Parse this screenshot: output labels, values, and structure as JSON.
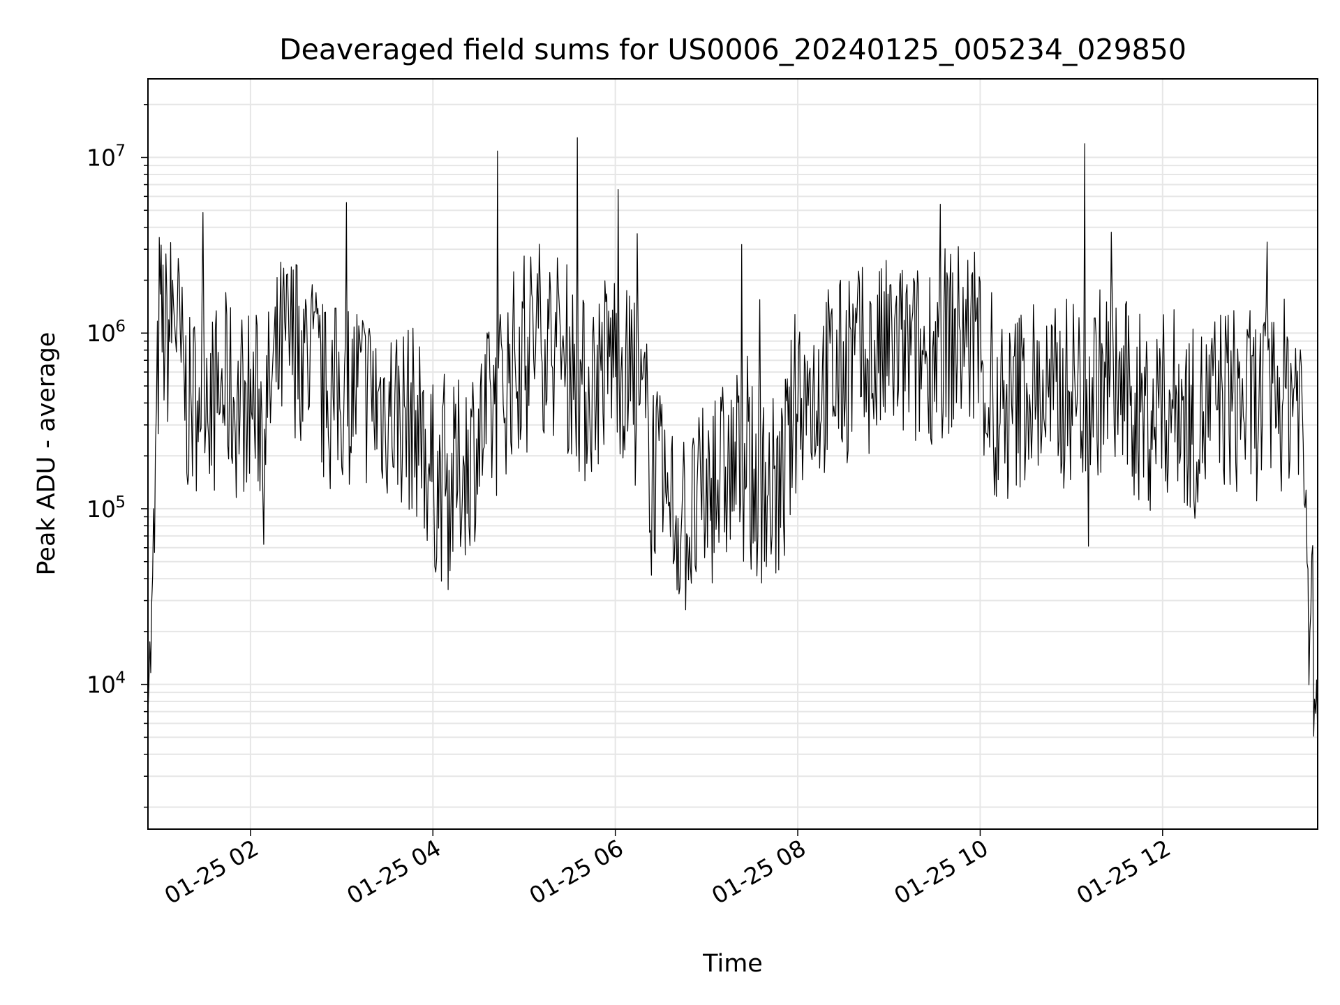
{
  "chart_data": {
    "type": "line",
    "title": "Deaveraged field sums for US0006_20240125_005234_029850",
    "xlabel": "Time",
    "ylabel": "Peak ADU - average",
    "yscale": "log",
    "ylim": [
      1500,
      28000000
    ],
    "xlim": [
      "2024-01-25 00:52:34",
      "2024-01-25 13:42:00"
    ],
    "grid": true,
    "line_color": "#000000",
    "grid_color": "#e6e6e6",
    "x_ticks": [
      {
        "t": "2024-01-25 02:00",
        "label": "01-25 02"
      },
      {
        "t": "2024-01-25 04:00",
        "label": "01-25 04"
      },
      {
        "t": "2024-01-25 06:00",
        "label": "01-25 06"
      },
      {
        "t": "2024-01-25 08:00",
        "label": "01-25 08"
      },
      {
        "t": "2024-01-25 10:00",
        "label": "01-25 10"
      },
      {
        "t": "2024-01-25 12:00",
        "label": "01-25 12"
      }
    ],
    "y_ticks": [
      {
        "value": 10000,
        "base": "10",
        "exp": "4"
      },
      {
        "value": 100000,
        "base": "10",
        "exp": "5"
      },
      {
        "value": 1000000,
        "base": "10",
        "exp": "6"
      },
      {
        "value": 10000000,
        "base": "10",
        "exp": "7"
      }
    ],
    "series": [
      {
        "x": [
          "2024-01-25 00:52:34",
          "2024-01-25 00:55",
          "2024-01-25 01:00",
          "2024-01-25 01:05",
          "2024-01-25 01:10",
          "2024-01-25 01:15",
          "2024-01-25 01:20",
          "2024-01-25 01:25",
          "2024-01-25 01:30",
          "2024-01-25 01:35",
          "2024-01-25 01:40",
          "2024-01-25 01:45",
          "2024-01-25 01:50",
          "2024-01-25 01:55",
          "2024-01-25 02:00",
          "2024-01-25 02:10",
          "2024-01-25 02:20",
          "2024-01-25 02:30",
          "2024-01-25 02:40",
          "2024-01-25 02:50",
          "2024-01-25 03:00",
          "2024-01-25 03:10",
          "2024-01-25 03:20",
          "2024-01-25 03:30",
          "2024-01-25 03:40",
          "2024-01-25 03:50",
          "2024-01-25 04:00",
          "2024-01-25 04:10",
          "2024-01-25 04:20",
          "2024-01-25 04:30",
          "2024-01-25 04:40",
          "2024-01-25 04:50",
          "2024-01-25 05:00",
          "2024-01-25 05:10",
          "2024-01-25 05:20",
          "2024-01-25 05:30",
          "2024-01-25 05:40",
          "2024-01-25 05:50",
          "2024-01-25 06:00",
          "2024-01-25 06:10",
          "2024-01-25 06:20",
          "2024-01-25 06:30",
          "2024-01-25 06:40",
          "2024-01-25 06:50",
          "2024-01-25 07:00",
          "2024-01-25 07:10",
          "2024-01-25 07:20",
          "2024-01-25 07:30",
          "2024-01-25 07:40",
          "2024-01-25 07:50",
          "2024-01-25 08:00",
          "2024-01-25 08:10",
          "2024-01-25 08:20",
          "2024-01-25 08:30",
          "2024-01-25 08:40",
          "2024-01-25 08:50",
          "2024-01-25 09:00",
          "2024-01-25 09:10",
          "2024-01-25 09:20",
          "2024-01-25 09:30",
          "2024-01-25 09:40",
          "2024-01-25 09:50",
          "2024-01-25 10:00",
          "2024-01-25 10:10",
          "2024-01-25 10:20",
          "2024-01-25 10:30",
          "2024-01-25 10:40",
          "2024-01-25 10:50",
          "2024-01-25 11:00",
          "2024-01-25 11:10",
          "2024-01-25 11:20",
          "2024-01-25 11:30",
          "2024-01-25 11:40",
          "2024-01-25 11:50",
          "2024-01-25 12:00",
          "2024-01-25 12:10",
          "2024-01-25 12:20",
          "2024-01-25 12:30",
          "2024-01-25 12:40",
          "2024-01-25 12:50",
          "2024-01-25 13:00",
          "2024-01-25 13:10",
          "2024-01-25 13:20",
          "2024-01-25 13:30",
          "2024-01-25 13:35",
          "2024-01-25 13:40",
          "2024-01-25 13:42"
        ],
        "values": [
          12000,
          15000,
          1200000,
          900000,
          1500000,
          600000,
          350000,
          450000,
          700000,
          400000,
          450000,
          500000,
          380000,
          420000,
          400000,
          350000,
          800000,
          900000,
          700000,
          400000,
          450000,
          500000,
          420000,
          380000,
          350000,
          300000,
          150000,
          120000,
          180000,
          250000,
          350000,
          600000,
          900000,
          1000000,
          850000,
          700000,
          450000,
          600000,
          800000,
          500000,
          300000,
          120000,
          90000,
          80000,
          120000,
          150000,
          180000,
          140000,
          130000,
          120000,
          500000,
          450000,
          550000,
          600000,
          700000,
          650000,
          800000,
          750000,
          700000,
          850000,
          900000,
          1000000,
          800000,
          250000,
          350000,
          500000,
          450000,
          400000,
          500000,
          450000,
          550000,
          500000,
          400000,
          350000,
          380000,
          420000,
          300000,
          350000,
          450000,
          400000,
          380000,
          420000,
          450000,
          550000,
          70000,
          12000,
          5000
        ]
      }
    ]
  }
}
